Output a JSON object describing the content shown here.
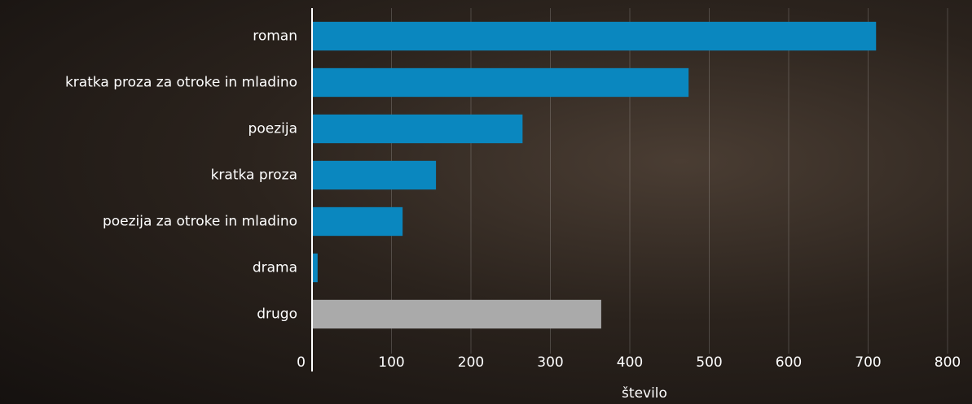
{
  "chart_data": {
    "type": "hbar",
    "categories": [
      "roman",
      "kratka proza za otroke in mladino",
      "poezija",
      "kratka proza",
      "poezija za otroke in mladino",
      "drama",
      "drugo"
    ],
    "values": [
      710,
      474,
      265,
      156,
      114,
      7,
      364
    ],
    "colors": [
      "#0a87bf",
      "#0a87bf",
      "#0a87bf",
      "#0a87bf",
      "#0a87bf",
      "#0a87bf",
      "#aaaaaa"
    ],
    "xlabel": "število",
    "xlim": [
      0,
      800
    ],
    "xticks": [
      0,
      100,
      200,
      300,
      400,
      500,
      600,
      700,
      800
    ],
    "grid": true
  }
}
